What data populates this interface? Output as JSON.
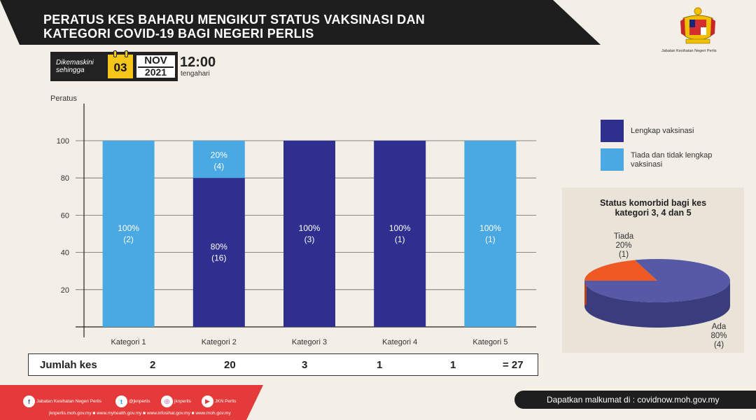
{
  "title": {
    "line1": "PERATUS KES BAHARU MENGIKUT STATUS VAKSINASI  DAN",
    "line2": "KATEGORI COVID-19 BAGI NEGERI PERLIS"
  },
  "department": "Jabatan Kesihatan Negeri Perlis",
  "update": {
    "label_line1": "Dikemaskini",
    "label_line2": "sehingga",
    "day": "03",
    "month": "NOV",
    "year": "2021",
    "time": "12:00",
    "time_note": "tengahari"
  },
  "colors": {
    "lengkap": "#2e2f8f",
    "tiada": "#4aa8e3",
    "pie_ada": "#5659a6",
    "pie_tiada": "#ef5a24",
    "brand_red": "#e53a3a"
  },
  "chart_data": [
    {
      "type": "bar",
      "ylabel": "Peratus",
      "ylim": [
        0,
        100
      ],
      "yticks": [
        20,
        40,
        60,
        80,
        100
      ],
      "grid": true,
      "stacked": true,
      "categories": [
        "Kategori 1",
        "Kategori 2",
        "Kategori 3",
        "Kategori 4",
        "Kategori 5"
      ],
      "series": [
        {
          "name": "Lengkap vaksinasi",
          "values": [
            0,
            80,
            100,
            100,
            0
          ],
          "counts": [
            0,
            16,
            3,
            1,
            0
          ],
          "labels": [
            "",
            "80%",
            "100%",
            "100%",
            ""
          ],
          "count_labels": [
            "",
            "(16)",
            "(3)",
            "(1)",
            ""
          ]
        },
        {
          "name": "Tiada dan tidak lengkap vaksinasi",
          "values": [
            100,
            20,
            0,
            0,
            100
          ],
          "counts": [
            2,
            4,
            0,
            0,
            1
          ],
          "labels": [
            "100%",
            "20%",
            "",
            "",
            "100%"
          ],
          "count_labels": [
            "(2)",
            "(4)",
            "",
            "",
            "(1)"
          ]
        }
      ],
      "legend": [
        "Lengkap vaksinasi",
        "Tiada dan tidak lengkap vaksinasi"
      ]
    },
    {
      "type": "pie",
      "title_line1": "Status komorbid bagi kes",
      "title_line2": "kategori 3, 4 dan 5",
      "slices": [
        {
          "name": "Ada",
          "percent": 80,
          "label": "80%",
          "count": "(4)"
        },
        {
          "name": "Tiada",
          "percent": 20,
          "label": "20%",
          "count": "(1)"
        }
      ]
    }
  ],
  "totals": {
    "label": "Jumlah kes",
    "values": [
      "2",
      "20",
      "3",
      "1",
      "1"
    ],
    "sum": "= 27"
  },
  "footer": {
    "social": [
      {
        "icon": "facebook-icon",
        "glyph": "f",
        "text": "Jabatan Kesihatan Negeri Perlis"
      },
      {
        "icon": "twitter-icon",
        "glyph": "t",
        "text": "@jknperlis"
      },
      {
        "icon": "instagram-icon",
        "glyph": "◎",
        "text": "jknperlis"
      },
      {
        "icon": "youtube-icon",
        "glyph": "▶",
        "text": "JKN Perlis"
      }
    ],
    "websites": "jknperlis.moh.gov.my ■ www.myhealth.gov.my ■ www.infosihat.gov.my ■ www.moh.gov.my",
    "info": "Dapatkan malkumat di : covidnow.moh.gov.my"
  }
}
